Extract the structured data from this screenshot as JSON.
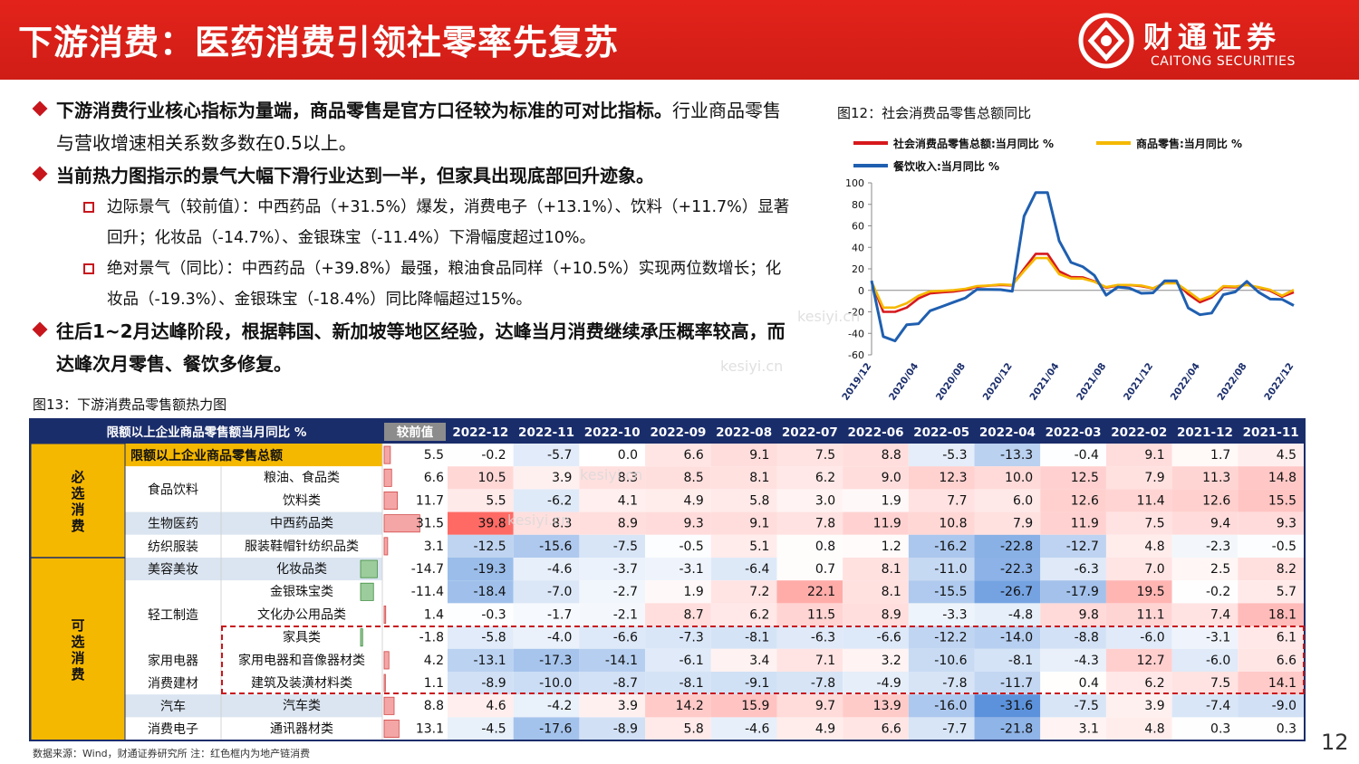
{
  "header": {
    "title": "下游消费：医药消费引领社零率先复苏",
    "logo_cn": "财通证券",
    "logo_en": "CAITONG SECURITIES"
  },
  "bullets": {
    "b1_bold": "下游消费行业核心指标为量端，商品零售是官方口径较为标准的可对比指标。",
    "b1_rest": "行业商品零售与营收增速相关系数多数在0.5以上。",
    "b2_bold": "当前热力图指示的景气大幅下滑行业达到一半，但家具出现底部回升迹象。",
    "sub1": "边际景气（较前值）：中西药品（+31.5%）爆发，消费电子（+13.1%）、饮料（+11.7%）显著回升；化妆品（-14.7%）、金银珠宝（-11.4%）下滑幅度超过10%。",
    "sub2": "绝对景气（同比）：中西药品（+39.8%）最强，粮油食品同样（+10.5%）实现两位数增长；化妆品（-19.3%）、金银珠宝（-18.4%）同比降幅超过15%。",
    "b3_bold": "往后1~2月达峰阶段，根据韩国、新加坡等地区经验，达峰当月消费继续承压概率较高，而达峰次月零售、餐饮多修复。"
  },
  "fig12_title": "图12：社会消费品零售总额同比",
  "fig13_title": "图13：下游消费品零售额热力图",
  "note": "数据来源：Wind，财通证券研究所   注：红色框内为地产链消费",
  "page_number": "12",
  "watermarks": [
    "kesiyi.cn",
    "kesiyi.cn",
    "kesiyi.cn",
    "kesiyi.cn"
  ],
  "chart_data": {
    "type": "line",
    "title": "图12：社会消费品零售总额同比",
    "ylim": [
      -60,
      100
    ],
    "yticks": [
      100,
      80,
      60,
      40,
      20,
      0,
      -20,
      -40,
      -60
    ],
    "xticks": [
      "2019/12",
      "2020/04",
      "2020/08",
      "2020/12",
      "2021/04",
      "2021/08",
      "2021/12",
      "2022/04",
      "2022/08",
      "2022/12"
    ],
    "x": [
      "2019/12",
      "2020/01",
      "2020/02",
      "2020/03",
      "2020/04",
      "2020/05",
      "2020/06",
      "2020/07",
      "2020/08",
      "2020/09",
      "2020/10",
      "2020/11",
      "2020/12",
      "2021/01",
      "2021/02",
      "2021/03",
      "2021/04",
      "2021/05",
      "2021/06",
      "2021/07",
      "2021/08",
      "2021/09",
      "2021/10",
      "2021/11",
      "2021/12",
      "2022/01",
      "2022/02",
      "2022/03",
      "2022/04",
      "2022/05",
      "2022/06",
      "2022/07",
      "2022/08",
      "2022/09",
      "2022/10",
      "2022/11",
      "2022/12"
    ],
    "series": [
      {
        "name": "社会消费品零售总额:当月同比 %",
        "color": "#d7191c",
        "values": [
          8,
          -20,
          -20,
          -16,
          -7.5,
          -2.8,
          -1.8,
          -1.1,
          0.5,
          3.3,
          4.3,
          5,
          4.6,
          20,
          34,
          34,
          17.7,
          12.4,
          12.1,
          8.5,
          2.5,
          4.4,
          4.9,
          3.9,
          1.7,
          7,
          7,
          -3.5,
          -11.1,
          -6.7,
          3.1,
          2.7,
          5.4,
          2.5,
          -0.5,
          -5.9,
          -1.8
        ]
      },
      {
        "name": "商品零售:当月同比 %",
        "color": "#f5b800",
        "values": [
          8,
          -16,
          -16,
          -12,
          -5,
          -1,
          -0.5,
          0.1,
          1.5,
          4,
          4.5,
          5.5,
          5,
          18,
          30,
          30,
          15,
          11,
          11,
          8,
          3,
          5,
          5,
          4.5,
          2,
          6.5,
          6.5,
          -1,
          -9,
          -5,
          4,
          3.5,
          5,
          3,
          0.5,
          -5,
          0.5
        ]
      },
      {
        "name": "餐饮收入:当月同比 %",
        "color": "#1f5fb0",
        "values": [
          9,
          -43,
          -47,
          -32,
          -31,
          -19,
          -15,
          -11,
          -7,
          1,
          0.8,
          0.6,
          -0.9,
          69,
          91,
          91,
          46,
          26,
          22,
          13.9,
          -4.5,
          3.1,
          2,
          -2.7,
          -2.3,
          8.9,
          8.9,
          -16.4,
          -22.7,
          -21.1,
          -4,
          -1.5,
          8.4,
          -1.7,
          -8.1,
          -8.4,
          -14.1
        ]
      }
    ]
  },
  "heatmap": {
    "title": "限额以上企业商品零售额当月同比 %",
    "prev_label": "较前值",
    "months": [
      "2022-12",
      "2022-11",
      "2022-10",
      "2022-09",
      "2022-08",
      "2022-07",
      "2022-06",
      "2022-05",
      "2022-04",
      "2022-03",
      "2022-02",
      "2021-12",
      "2021-11"
    ],
    "groups": [
      {
        "name": "必选消费",
        "rows": [
          0,
          4
        ]
      },
      {
        "name": "可选消费",
        "rows": [
          5,
          12
        ]
      }
    ],
    "rows": [
      {
        "level1": "限额以上企业商品零售总额",
        "level2": "",
        "level3": "",
        "delta": 5.5,
        "values": [
          -0.2,
          -5.7,
          0.0,
          6.6,
          9.1,
          7.5,
          8.8,
          -5.3,
          -13.3,
          -0.4,
          9.1,
          1.7,
          4.5
        ]
      },
      {
        "level1": "",
        "level2": "食品饮料",
        "level3": "粮油、食品类",
        "delta": 6.6,
        "values": [
          10.5,
          3.9,
          8.3,
          8.5,
          8.1,
          6.2,
          9.0,
          12.3,
          10.0,
          12.5,
          7.9,
          11.3,
          14.8
        ]
      },
      {
        "level1": "",
        "level2": "",
        "level3": "饮料类",
        "delta": 11.7,
        "values": [
          5.5,
          -6.2,
          4.1,
          4.9,
          5.8,
          3.0,
          1.9,
          7.7,
          6.0,
          12.6,
          11.4,
          12.6,
          15.5
        ]
      },
      {
        "level1": "",
        "level2": "生物医药",
        "level3": "中西药品类",
        "delta": 31.5,
        "values": [
          39.8,
          8.3,
          8.9,
          9.3,
          9.1,
          7.8,
          11.9,
          10.8,
          7.9,
          11.9,
          7.5,
          9.4,
          9.3
        ]
      },
      {
        "level1": "",
        "level2": "纺织服装",
        "level3": "服装鞋帽针纺织品类",
        "delta": 3.1,
        "values": [
          -12.5,
          -15.6,
          -7.5,
          -0.5,
          5.1,
          0.8,
          1.2,
          -16.2,
          -22.8,
          -12.7,
          4.8,
          -2.3,
          -0.5
        ]
      },
      {
        "level1": "",
        "level2": "美容美妆",
        "level3": "化妆品类",
        "delta": -14.7,
        "values": [
          -19.3,
          -4.6,
          -3.7,
          -3.1,
          -6.4,
          0.7,
          8.1,
          -11.0,
          -22.3,
          -6.3,
          7.0,
          2.5,
          8.2
        ]
      },
      {
        "level1": "",
        "level2": "轻工制造",
        "level3": "金银珠宝类",
        "delta": -11.4,
        "values": [
          -18.4,
          -7.0,
          -2.7,
          1.9,
          7.2,
          22.1,
          8.1,
          -15.5,
          -26.7,
          -17.9,
          19.5,
          -0.2,
          5.7
        ]
      },
      {
        "level1": "",
        "level2": "",
        "level3": "文化办公用品类",
        "delta": 1.4,
        "values": [
          -0.3,
          -1.7,
          -2.1,
          8.7,
          6.2,
          11.5,
          8.9,
          -3.3,
          -4.8,
          9.8,
          11.1,
          7.4,
          18.1
        ]
      },
      {
        "level1": "",
        "level2": "",
        "level3": "家具类",
        "delta": -1.8,
        "values": [
          -5.8,
          -4.0,
          -6.6,
          -7.3,
          -8.1,
          -6.3,
          -6.6,
          -12.2,
          -14.0,
          -8.8,
          -6.0,
          -3.1,
          6.1
        ]
      },
      {
        "level1": "",
        "level2": "家用电器",
        "level3": "家用电器和音像器材类",
        "delta": 4.2,
        "values": [
          -13.1,
          -17.3,
          -14.1,
          -6.1,
          3.4,
          7.1,
          3.2,
          -10.6,
          -8.1,
          -4.3,
          12.7,
          -6.0,
          6.6
        ]
      },
      {
        "level1": "",
        "level2": "消费建材",
        "level3": "建筑及装潢材料类",
        "delta": 1.1,
        "values": [
          -8.9,
          -10.0,
          -8.7,
          -8.1,
          -9.1,
          -7.8,
          -4.9,
          -7.8,
          -11.7,
          0.4,
          6.2,
          7.5,
          14.1
        ]
      },
      {
        "level1": "",
        "level2": "汽车",
        "level3": "汽车类",
        "delta": 8.8,
        "values": [
          4.6,
          -4.2,
          3.9,
          14.2,
          15.9,
          9.7,
          13.9,
          -16.0,
          -31.6,
          -7.5,
          3.9,
          -7.4,
          -9.0
        ]
      },
      {
        "level1": "",
        "level2": "消费电子",
        "level3": "通讯器材类",
        "delta": 13.1,
        "values": [
          -4.5,
          -17.6,
          -8.9,
          5.8,
          -4.6,
          4.9,
          6.6,
          -7.7,
          -21.8,
          3.1,
          4.8,
          0.3,
          0.3
        ]
      }
    ]
  }
}
